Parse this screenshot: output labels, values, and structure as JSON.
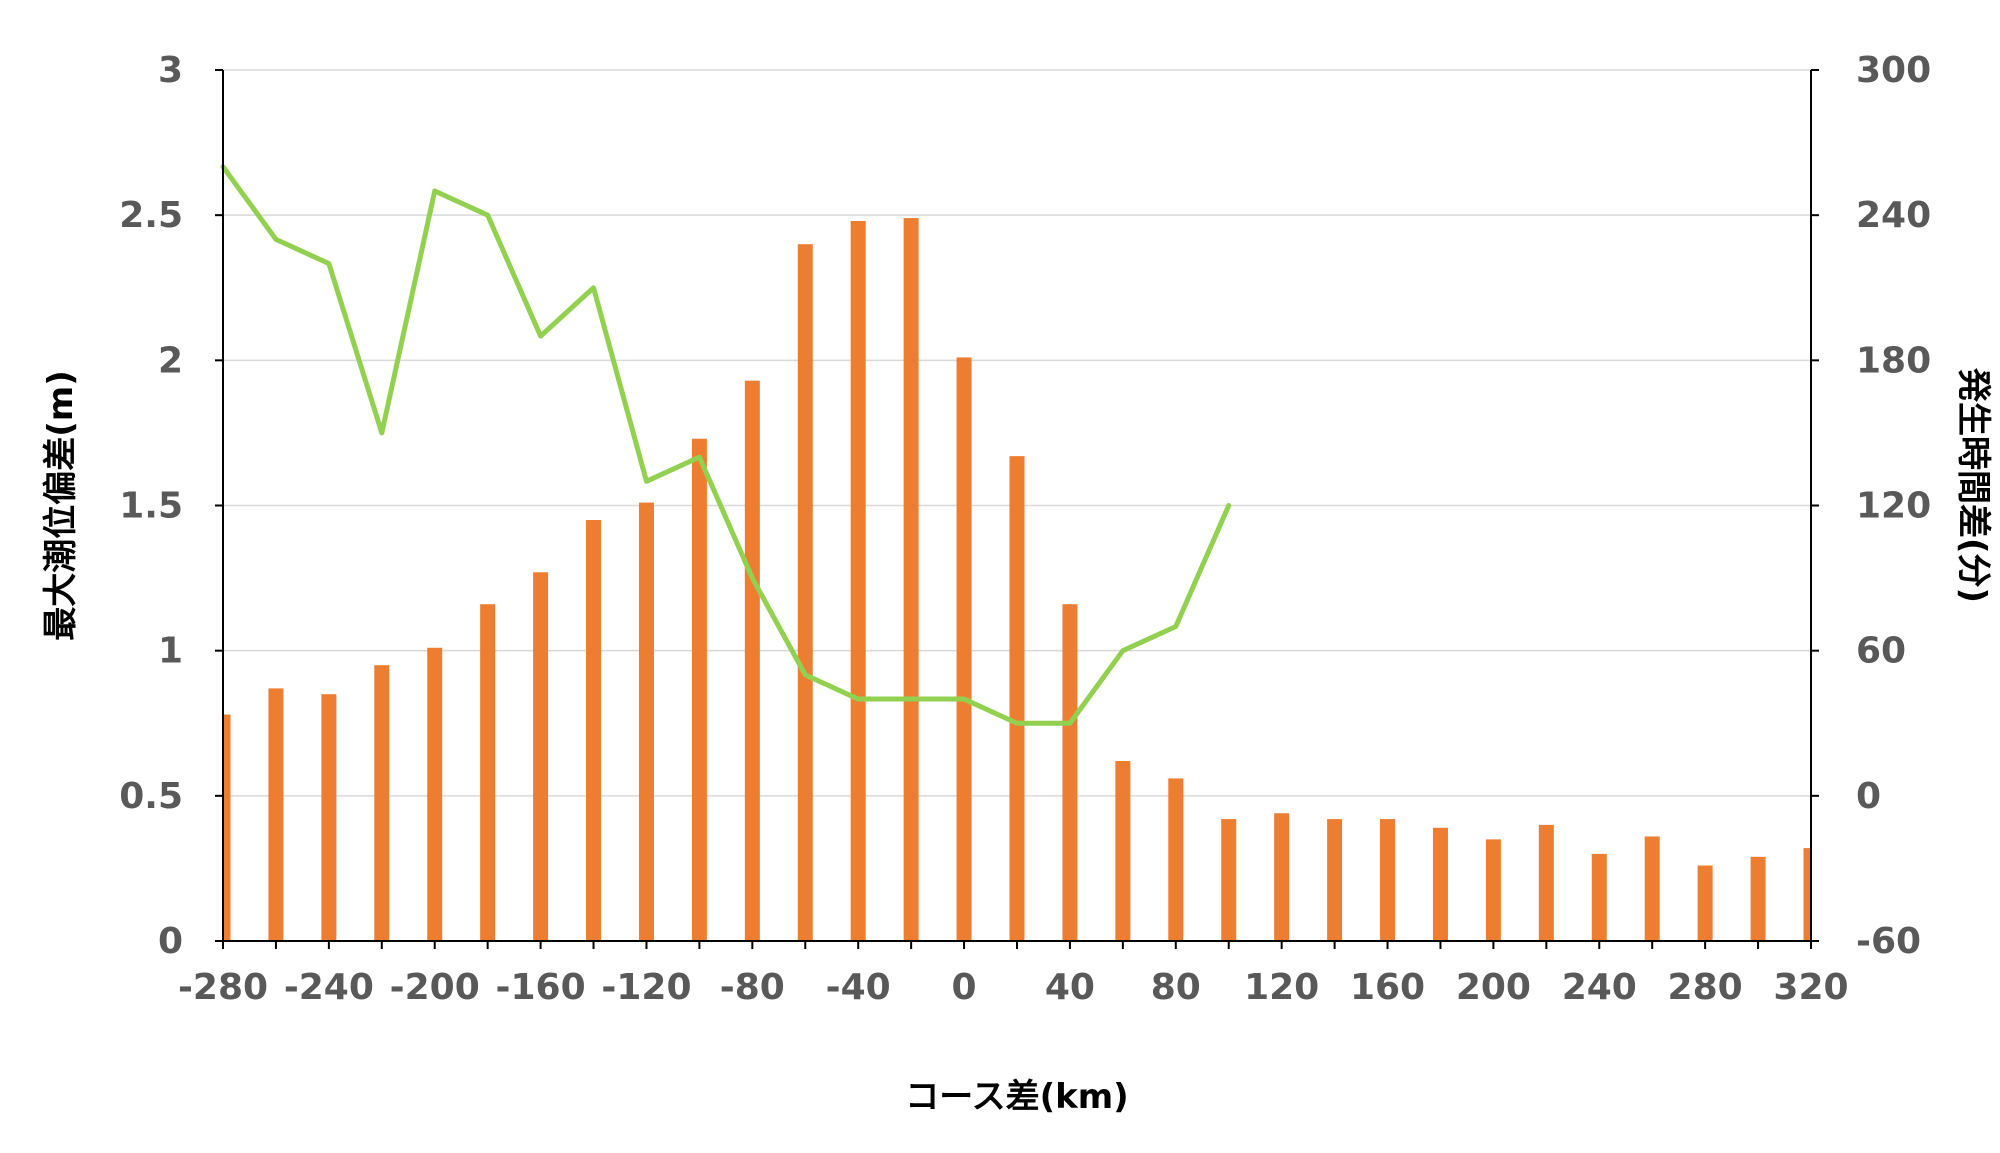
{
  "chart_data": {
    "type": "bar+line",
    "xlabel": "コース差(km)",
    "ylabel_left": "最大潮位偏差(m)",
    "ylabel_right": "発生時間差(分)",
    "x_ticks": [
      "-280",
      "-240",
      "-200",
      "-160",
      "-120",
      "-80",
      "-40",
      "0",
      "40",
      "80",
      "120",
      "160",
      "200",
      "240",
      "280",
      "320"
    ],
    "y_left_ticks": [
      "0",
      "0.5",
      "1",
      "1.5",
      "2",
      "2.5",
      "3"
    ],
    "y_right_ticks": [
      "-60",
      "0",
      "60",
      "120",
      "180",
      "240",
      "300"
    ],
    "xlim": [
      -280,
      320
    ],
    "ylim_left": [
      0,
      3
    ],
    "ylim_right": [
      -60,
      300
    ],
    "grid": true,
    "bar_series": {
      "color": "#ed7d31",
      "x": [
        -280,
        -260,
        -240,
        -220,
        -200,
        -180,
        -160,
        -140,
        -120,
        -100,
        -80,
        -60,
        -40,
        -20,
        0,
        20,
        40,
        60,
        80,
        100,
        120,
        140,
        160,
        180,
        200,
        220,
        240,
        260,
        280,
        300,
        320
      ],
      "values": [
        0.78,
        0.87,
        0.85,
        0.95,
        1.01,
        1.16,
        1.27,
        1.45,
        1.51,
        1.73,
        1.93,
        2.4,
        2.48,
        2.49,
        2.01,
        1.67,
        1.16,
        0.62,
        0.56,
        0.42,
        0.44,
        0.42,
        0.42,
        0.39,
        0.35,
        0.4,
        0.3,
        0.36,
        0.26,
        0.29,
        0.32
      ]
    },
    "line_series": {
      "color": "#92d050",
      "x": [
        -280,
        -260,
        -240,
        -220,
        -200,
        -180,
        -160,
        -140,
        -120,
        -100,
        -80,
        -60,
        -40,
        -20,
        0,
        20,
        40,
        60,
        80,
        100
      ],
      "values": [
        260,
        230,
        220,
        150,
        250,
        240,
        190,
        210,
        130,
        140,
        90,
        50,
        40,
        40,
        40,
        30,
        30,
        60,
        70,
        120
      ]
    }
  }
}
